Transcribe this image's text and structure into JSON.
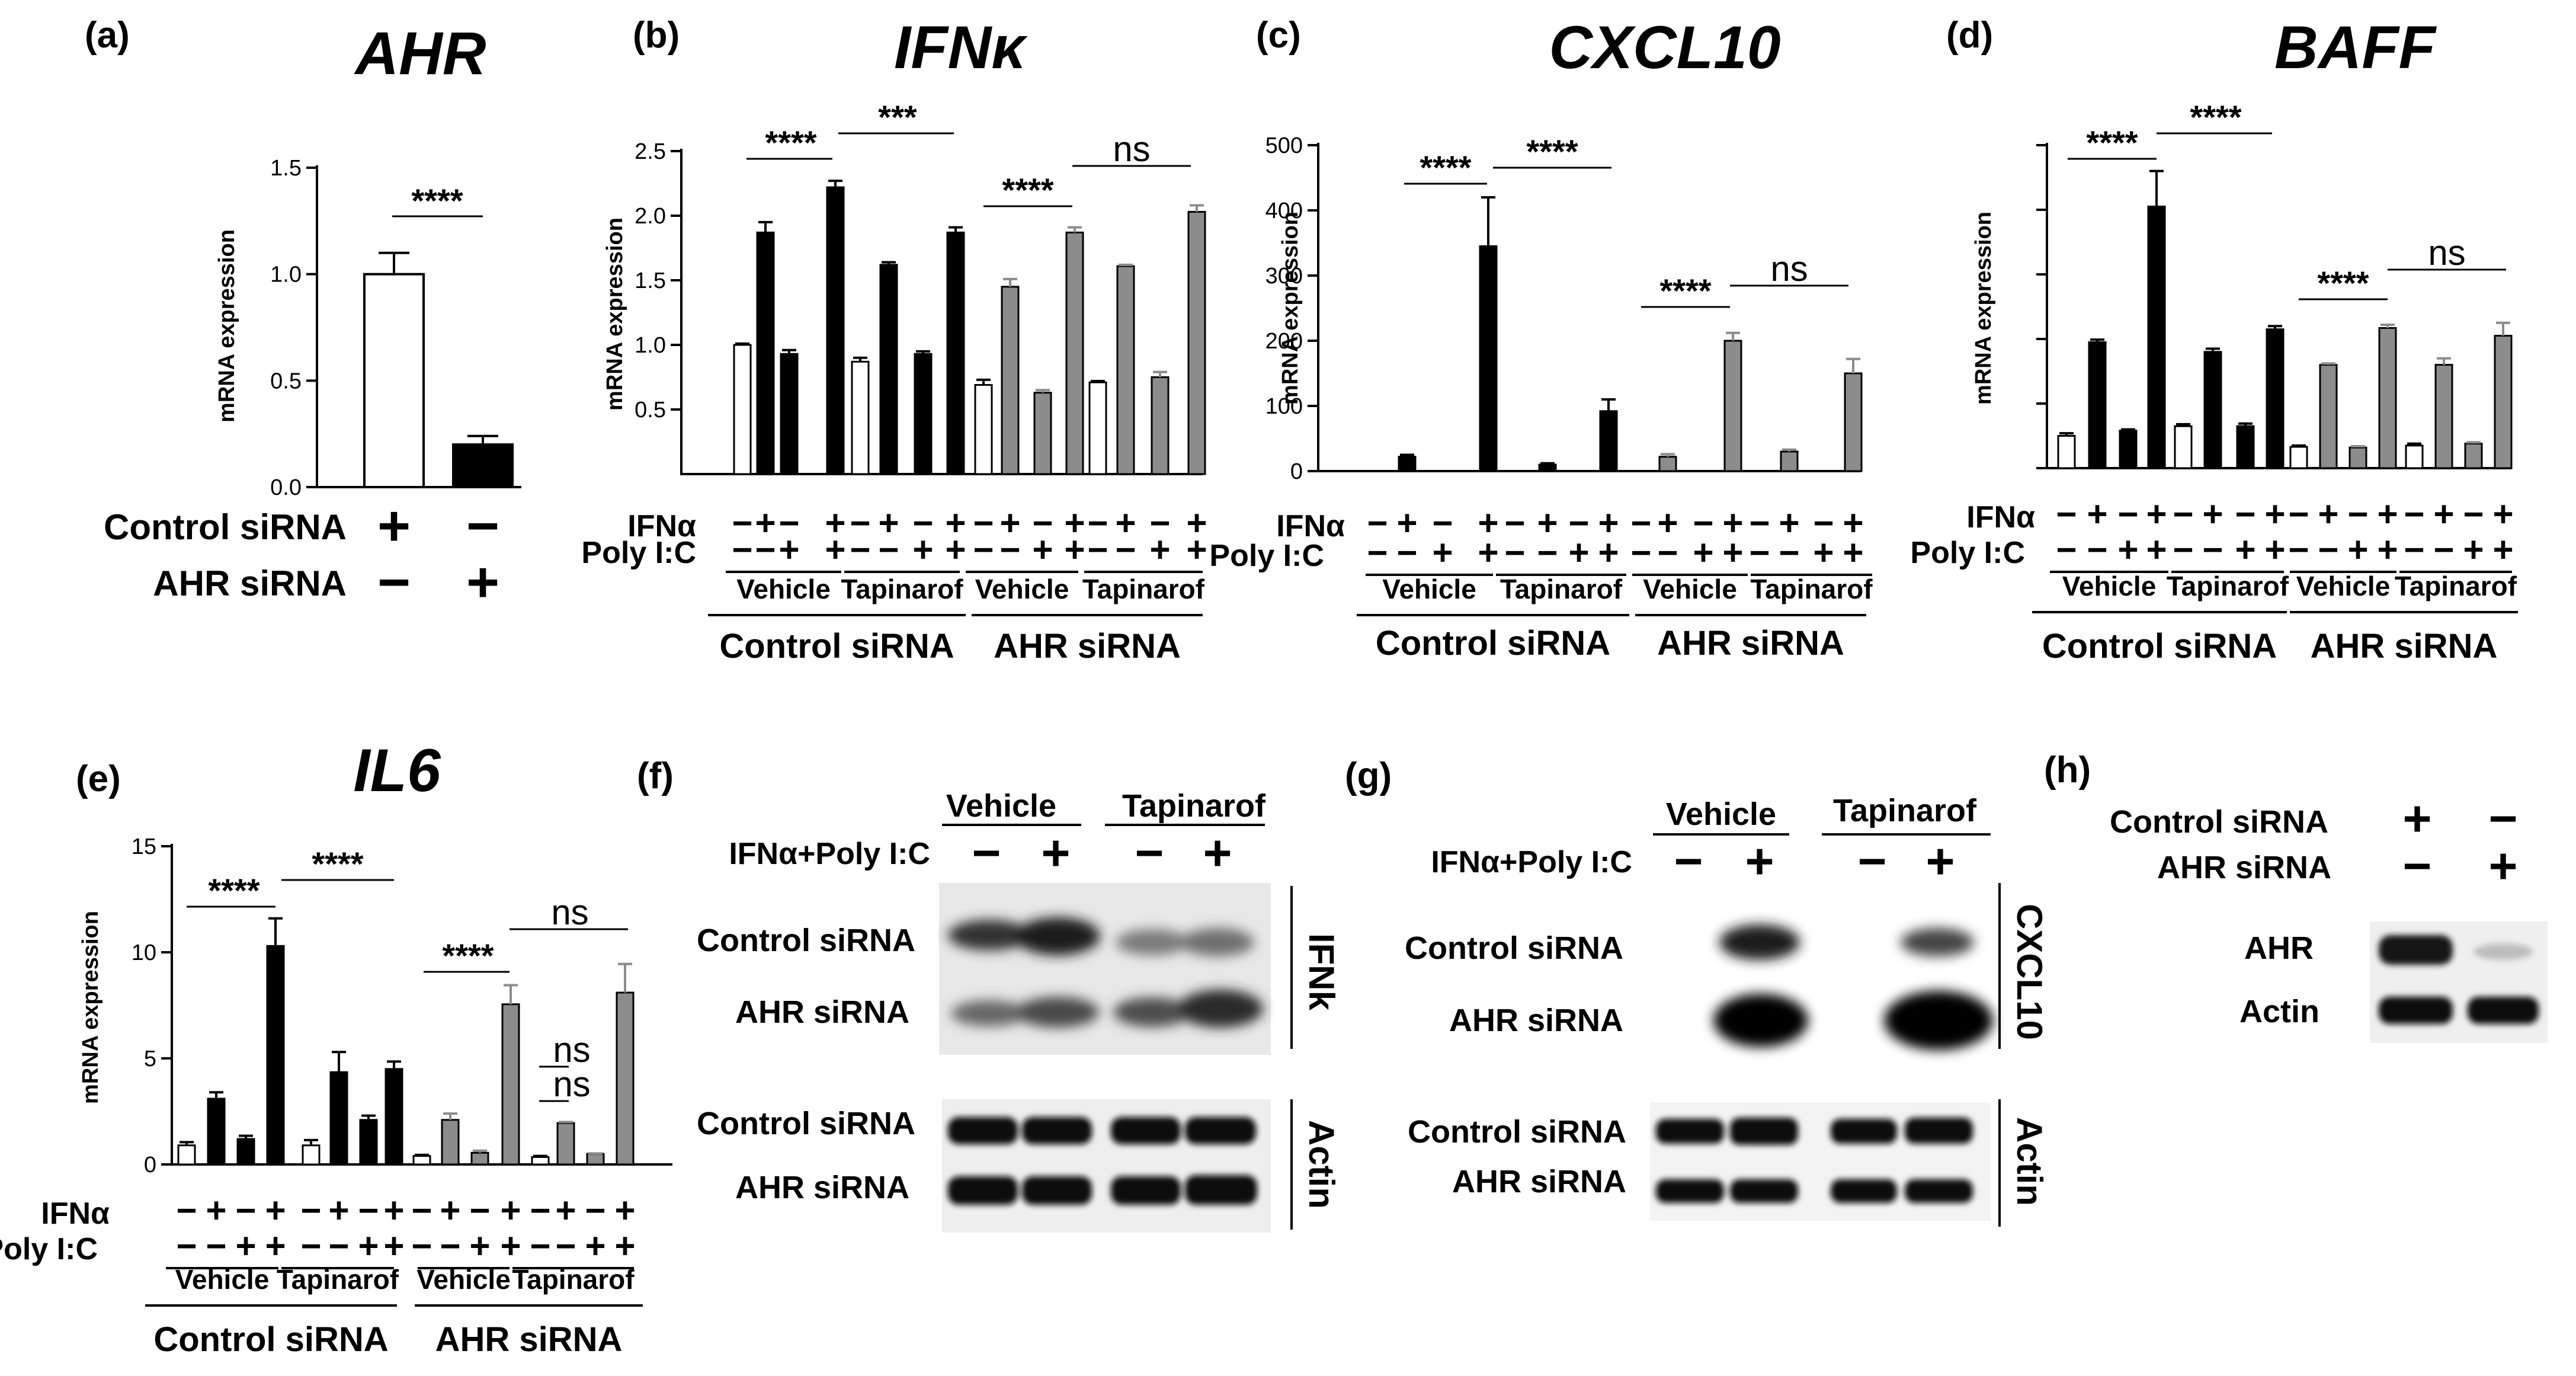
{
  "chart_data": [
    {
      "panel": "(a)",
      "title": "AHR",
      "type": "bar",
      "ylabel": "mRNA expression",
      "ylim": [
        0,
        1.5
      ],
      "yticks": [
        "0.0",
        "0.5",
        "1.0",
        "1.5"
      ],
      "values": [
        1.0,
        0.2
      ],
      "errors": [
        0.1,
        0.04
      ],
      "bar_colors": [
        "#ffffff",
        "#000000"
      ],
      "rows": [
        {
          "label": "Control siRNA",
          "signs": [
            "+",
            "−"
          ]
        },
        {
          "label": "AHR siRNA",
          "signs": [
            "−",
            "+"
          ]
        }
      ],
      "significance": [
        {
          "label": "****"
        }
      ]
    },
    {
      "panel": "(b)",
      "title": "IFNκ",
      "type": "bar",
      "ylabel": "mRNA expression",
      "ylim": [
        0,
        2.5
      ],
      "yticks": [
        "0.5",
        "1.0",
        "1.5",
        "2.0",
        "2.5"
      ],
      "values": [
        1.0,
        1.87,
        0.93,
        2.22,
        0.87,
        1.62,
        0.93,
        1.87,
        0.69,
        1.45,
        0.63,
        1.87,
        0.71,
        1.61,
        0.75,
        2.03
      ],
      "errors": [
        0.01,
        0.08,
        0.03,
        0.05,
        0.03,
        0.02,
        0.02,
        0.04,
        0.04,
        0.06,
        0.02,
        0.04,
        0.01,
        0.01,
        0.04,
        0.05
      ],
      "ifna": [
        "−",
        "+",
        "−",
        "+",
        "−",
        "+",
        "−",
        "+",
        "−",
        "+",
        "−",
        "+",
        "−",
        "+",
        "−",
        "+"
      ],
      "polyic": [
        "−",
        "−",
        "+",
        "+",
        "−",
        "−",
        "+",
        "+",
        "−",
        "−",
        "+",
        "+",
        "−",
        "−",
        "+",
        "+"
      ],
      "ifna_label": "IFNα",
      "polyic_label": "Poly I:C",
      "treatments": [
        "Vehicle",
        "Tapinarof",
        "Vehicle",
        "Tapinarof"
      ],
      "groups": [
        "Control siRNA",
        "AHR siRNA"
      ],
      "significance": [
        {
          "label": "****"
        },
        {
          "label": "***"
        },
        {
          "label": "****"
        },
        {
          "label": "ns"
        }
      ]
    },
    {
      "panel": "(c)",
      "title": "CXCL10",
      "type": "bar",
      "ylabel": "mRNA expression",
      "ylim": [
        0,
        500
      ],
      "yticks": [
        "0",
        "100",
        "200",
        "300",
        "400",
        "500"
      ],
      "values": [
        0,
        22,
        0,
        345,
        0,
        10,
        0,
        92,
        0,
        22,
        0,
        200,
        0,
        30,
        0,
        150
      ],
      "errors": [
        0,
        3,
        0,
        75,
        0,
        2,
        0,
        18,
        0,
        4,
        0,
        12,
        0,
        3,
        0,
        22
      ],
      "ifna": [
        "−",
        "+",
        "−",
        "+",
        "−",
        "+",
        "−",
        "+",
        "−",
        "+",
        "−",
        "+",
        "−",
        "+",
        "−",
        "+"
      ],
      "polyic": [
        "−",
        "−",
        "+",
        "+",
        "−",
        "−",
        "+",
        "+",
        "−",
        "−",
        "+",
        "+",
        "−",
        "−",
        "+",
        "+"
      ],
      "ifna_label": "IFNα",
      "polyic_label": "Poly I:C",
      "treatments": [
        "Vehicle",
        "Tapinarof",
        "Vehicle",
        "Tapinarof"
      ],
      "groups": [
        "Control siRNA",
        "AHR siRNA"
      ],
      "significance": [
        {
          "label": "****"
        },
        {
          "label": "****"
        },
        {
          "label": "****"
        },
        {
          "label": "ns"
        }
      ]
    },
    {
      "panel": "(d)",
      "title": "BAFF",
      "type": "bar",
      "ylabel": "mRNA expression",
      "ylim": [
        0,
        5
      ],
      "yticks": [
        "",
        "",
        "",
        "",
        "",
        ""
      ],
      "values": [
        0.5,
        1.95,
        0.58,
        4.05,
        0.65,
        1.8,
        0.65,
        2.15,
        0.33,
        1.6,
        0.32,
        2.17,
        0.35,
        1.6,
        0.38,
        2.05
      ],
      "errors": [
        0.04,
        0.04,
        0.02,
        0.55,
        0.03,
        0.05,
        0.04,
        0.05,
        0.02,
        0.02,
        0.02,
        0.05,
        0.03,
        0.1,
        0.02,
        0.2
      ],
      "bar_colors": [
        "#ffffff",
        "#000000",
        "#000000",
        "#000000",
        "#ffffff",
        "#000000",
        "#000000",
        "#000000",
        "#ffffff",
        "#8c8c8c",
        "#8c8c8c",
        "#8c8c8c",
        "#ffffff",
        "#8c8c8c",
        "#8c8c8c",
        "#8c8c8c"
      ],
      "ifna": [
        "−",
        "+",
        "−",
        "+",
        "−",
        "+",
        "−",
        "+",
        "−",
        "+",
        "−",
        "+",
        "−",
        "+",
        "−",
        "+"
      ],
      "polyic": [
        "−",
        "−",
        "+",
        "+",
        "−",
        "−",
        "+",
        "+",
        "−",
        "−",
        "+",
        "+",
        "−",
        "−",
        "+",
        "+"
      ],
      "ifna_label": "IFNα",
      "polyic_label": "Poly I:C",
      "treatments": [
        "Vehicle",
        "Tapinarof",
        "Vehicle",
        "Tapinarof"
      ],
      "groups": [
        "Control siRNA",
        "AHR siRNA"
      ],
      "significance": [
        {
          "label": "****"
        },
        {
          "label": "****"
        },
        {
          "label": "****"
        },
        {
          "label": "ns"
        }
      ]
    },
    {
      "panel": "(e)",
      "title": "IL6",
      "type": "bar",
      "ylabel": "mRNA expression",
      "ylim": [
        0,
        15
      ],
      "yticks": [
        "0",
        "5",
        "10",
        "15"
      ],
      "values": [
        0.9,
        3.1,
        1.2,
        10.3,
        0.9,
        4.35,
        2.1,
        4.5,
        0.4,
        2.1,
        0.55,
        7.55,
        0.35,
        1.95,
        0.5,
        8.1
      ],
      "errors": [
        0.15,
        0.3,
        0.15,
        1.3,
        0.25,
        0.95,
        0.2,
        0.35,
        0.05,
        0.3,
        0.1,
        0.9,
        0.05,
        0.05,
        0.02,
        1.35
      ],
      "ifna": [
        "−",
        "+",
        "−",
        "+",
        "−",
        "+",
        "−",
        "+",
        "−",
        "+",
        "−",
        "+",
        "−",
        "+",
        "−",
        "+"
      ],
      "polyic": [
        "−",
        "−",
        "+",
        "+",
        "−",
        "−",
        "+",
        "+",
        "−",
        "−",
        "+",
        "+",
        "−",
        "−",
        "+",
        "+"
      ],
      "ifna_label": "IFNα",
      "polyic_label": "Poly I:C",
      "treatments": [
        "Vehicle",
        "Tapinarof",
        "Vehicle",
        "Tapinarof"
      ],
      "groups": [
        "Control siRNA",
        "AHR siRNA"
      ],
      "significance": [
        {
          "label": "****"
        },
        {
          "label": "****"
        },
        {
          "label": "****"
        },
        {
          "label": "ns"
        },
        {
          "label": "ns"
        },
        {
          "label": "ns"
        }
      ]
    }
  ],
  "blots": {
    "f": {
      "panel": "(f)",
      "treatments": [
        "Vehicle",
        "Tapinarof"
      ],
      "stim_label": "IFNα+Poly I:C",
      "stim_signs": [
        "−",
        "+",
        "−",
        "+"
      ],
      "protein": "IFNk",
      "loading": "Actin",
      "rows": [
        "Control siRNA",
        "AHR siRNA",
        "Control siRNA",
        "AHR siRNA"
      ]
    },
    "g": {
      "panel": "(g)",
      "treatments": [
        "Vehicle",
        "Tapinarof"
      ],
      "stim_label": "IFNα+Poly I:C",
      "stim_signs": [
        "−",
        "+",
        "−",
        "+"
      ],
      "protein": "CXCL10",
      "loading": "Actin",
      "rows": [
        "Control siRNA",
        "AHR siRNA",
        "Control siRNA",
        "AHR siRNA"
      ]
    },
    "h": {
      "panel": "(h)",
      "conditions": [
        {
          "label": "Control siRNA",
          "signs": [
            "+",
            "−"
          ]
        },
        {
          "label": "AHR siRNA",
          "signs": [
            "−",
            "+"
          ]
        }
      ],
      "rows": [
        "AHR",
        "Actin"
      ]
    }
  }
}
